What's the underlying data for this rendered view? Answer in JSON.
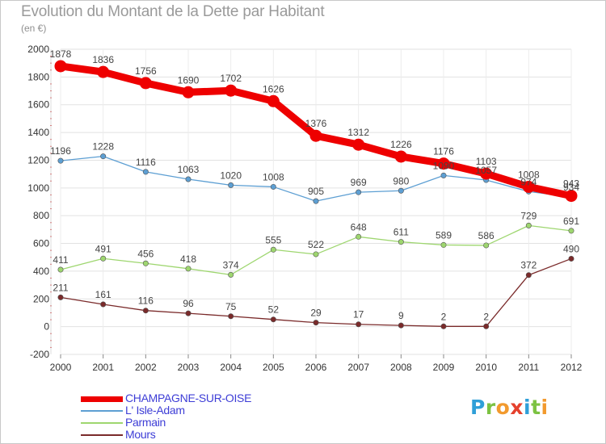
{
  "title": "Evolution du Montant de la Dette par Habitant",
  "unit": "(en €)",
  "brand": {
    "letters": [
      "P",
      "r",
      "o",
      "x",
      "i",
      "t",
      "i"
    ],
    "colors": [
      "#2f9fd8",
      "#7cc242",
      "#f29a2e",
      "#e5412d",
      "#2f9fd8",
      "#7cc242",
      "#f29a2e"
    ]
  },
  "chart_data": {
    "type": "line",
    "title": "Evolution du Montant de la Dette par Habitant",
    "subtitle": "(en €)",
    "xlabel": "",
    "ylabel": "",
    "x": [
      "2000",
      "2001",
      "2002",
      "2003",
      "2004",
      "2005",
      "2006",
      "2007",
      "2008",
      "2009",
      "2010",
      "2011",
      "2012"
    ],
    "ylim": [
      -200,
      2000
    ],
    "yticks": [
      "-200",
      "0",
      "200",
      "400",
      "600",
      "800",
      "1000",
      "1200",
      "1400",
      "1600",
      "1800",
      "2000"
    ],
    "grid": true,
    "legend_position": "bottom-left",
    "series": [
      {
        "name": "CHAMPAGNE-SUR-OISE",
        "color": "#ee0000",
        "values": [
          1878,
          1836,
          1756,
          1690,
          1702,
          1626,
          1376,
          1312,
          1226,
          1176,
          1103,
          1008,
          943
        ]
      },
      {
        "name": "L' Isle-Adam",
        "color": "#5d9fd3",
        "values": [
          1196,
          1228,
          1116,
          1063,
          1020,
          1008,
          905,
          969,
          980,
          1090,
          1057,
          974,
          934
        ]
      },
      {
        "name": "Parmain",
        "color": "#9ed66f",
        "values": [
          411,
          491,
          456,
          418,
          374,
          555,
          522,
          648,
          611,
          589,
          586,
          729,
          691
        ]
      },
      {
        "name": "Mours",
        "color": "#7a2a2a",
        "values": [
          211,
          161,
          116,
          96,
          75,
          52,
          29,
          17,
          9,
          2,
          2,
          372,
          490
        ]
      }
    ]
  }
}
